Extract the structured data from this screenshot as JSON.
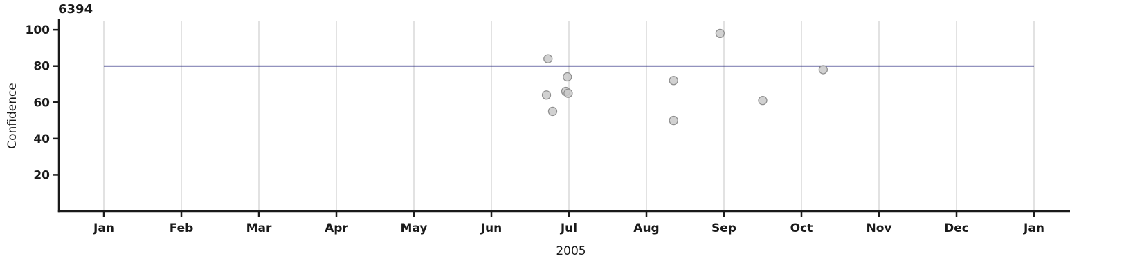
{
  "chart_data": {
    "type": "scatter",
    "title": "6394",
    "xlabel": "2005",
    "ylabel": "Confidence",
    "x_unit": "months since Jan 2005",
    "x_tick_labels": [
      "Jan",
      "Feb",
      "Mar",
      "Apr",
      "May",
      "Jun",
      "Jul",
      "Aug",
      "Sep",
      "Oct",
      "Nov",
      "Dec",
      "Jan"
    ],
    "y_ticks": [
      20,
      40,
      60,
      80,
      100
    ],
    "ylim": [
      0,
      105
    ],
    "grid": "vertical gridlines at each month tick",
    "legend": "none",
    "reference_line": {
      "y": 80,
      "color": "#26267d"
    },
    "point_style": {
      "fill": "#c9c9c9",
      "stroke": "#8f8f8f",
      "radius": 6,
      "opacity": 0.85
    },
    "points": [
      {
        "x": 5.73,
        "y": 84
      },
      {
        "x": 5.98,
        "y": 74
      },
      {
        "x": 5.71,
        "y": 64
      },
      {
        "x": 5.96,
        "y": 66
      },
      {
        "x": 5.99,
        "y": 65
      },
      {
        "x": 5.79,
        "y": 55
      },
      {
        "x": 7.35,
        "y": 72
      },
      {
        "x": 7.35,
        "y": 50
      },
      {
        "x": 7.95,
        "y": 98
      },
      {
        "x": 8.5,
        "y": 61
      },
      {
        "x": 9.28,
        "y": 78
      }
    ],
    "axis_color": "#1a1a1a",
    "gridline_color": "#d9d9d9"
  }
}
